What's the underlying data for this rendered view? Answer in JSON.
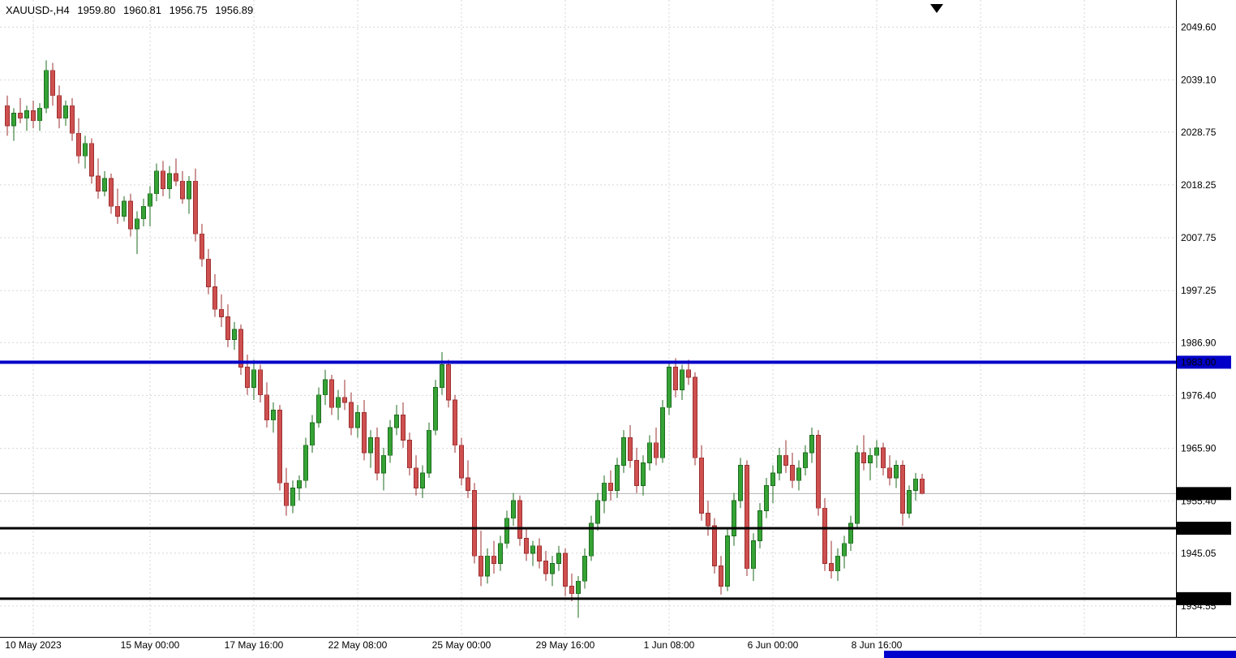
{
  "header": {
    "symbol_period": "XAUUSD-,H4",
    "open": "1959.80",
    "high": "1960.81",
    "low": "1956.75",
    "close": "1956.89"
  },
  "y_axis": {
    "ticks": [
      "2049.60",
      "2039.10",
      "2028.75",
      "2018.25",
      "2007.75",
      "1997.25",
      "1986.90",
      "1976.40",
      "1965.90",
      "1955.40",
      "1945.05",
      "1934.55"
    ],
    "tick_prices": [
      2049.6,
      2039.1,
      2028.75,
      2018.25,
      2007.75,
      1997.25,
      1986.9,
      1976.4,
      1965.9,
      1955.4,
      1945.05,
      1934.55
    ]
  },
  "x_axis": {
    "labels": [
      "10 May 2023",
      "15 May 00:00",
      "17 May 16:00",
      "22 May 08:00",
      "25 May 00:00",
      "29 May 16:00",
      "1 Jun 08:00",
      "6 Jun 00:00",
      "8 Jun 16:00"
    ],
    "bar_indices": [
      4,
      22,
      38,
      54,
      70,
      86,
      102,
      118,
      134
    ],
    "extra_gridline_indices": [
      150,
      166
    ]
  },
  "levels": [
    {
      "label": "1983.00",
      "price": 1983.0,
      "line_color": "#0000c8",
      "badge_bg": "#0000c8",
      "thickness": 4
    },
    {
      "label": "1950.00",
      "price": 1950.0,
      "line_color": "#000000",
      "badge_bg": "#000000",
      "thickness": 3
    },
    {
      "label": "1936.00",
      "price": 1936.0,
      "line_color": "#000000",
      "badge_bg": "#000000",
      "thickness": 3
    }
  ],
  "last_price": {
    "label": "1956.89",
    "price": 1956.89,
    "badge_bg": "#000000",
    "line_color": "#b3b3b3"
  },
  "colors": {
    "background": "#ffffff",
    "grid": "#d6d6d6",
    "axis_text": "#000000",
    "bull_fill": "#35a335",
    "bull_stroke": "#1e6b1e",
    "bear_fill": "#cf5050",
    "bear_stroke": "#9c2f2f",
    "level_blue": "#0000c8",
    "scrollbar": "#0000cd",
    "shift_marker": "#000000"
  },
  "chart_data": {
    "type": "candlestick",
    "symbol": "XAUUSD-",
    "timeframe": "H4",
    "title": "XAUUSD-,H4",
    "ylim": [
      1928.4,
      2055.0
    ],
    "grid": true,
    "candles": [
      [
        2034.0,
        2036.0,
        2028.0,
        2030.0
      ],
      [
        2030.0,
        2033.5,
        2027.0,
        2032.5
      ],
      [
        2032.5,
        2035.5,
        2030.5,
        2031.5
      ],
      [
        2031.5,
        2034.0,
        2029.0,
        2033.0
      ],
      [
        2033.0,
        2035.0,
        2029.5,
        2031.0
      ],
      [
        2031.0,
        2034.5,
        2029.0,
        2033.5
      ],
      [
        2033.5,
        2043.0,
        2032.5,
        2041.0
      ],
      [
        2041.0,
        2042.5,
        2034.0,
        2036.0
      ],
      [
        2036.0,
        2038.0,
        2029.5,
        2031.5
      ],
      [
        2031.5,
        2035.0,
        2030.0,
        2034.0
      ],
      [
        2034.0,
        2035.5,
        2027.0,
        2028.5
      ],
      [
        2028.5,
        2031.5,
        2022.5,
        2024.0
      ],
      [
        2024.0,
        2028.0,
        2021.5,
        2026.5
      ],
      [
        2026.5,
        2027.5,
        2018.5,
        2020.0
      ],
      [
        2020.0,
        2023.5,
        2015.5,
        2017.0
      ],
      [
        2017.0,
        2021.0,
        2016.0,
        2019.5
      ],
      [
        2019.5,
        2020.5,
        2012.5,
        2014.0
      ],
      [
        2014.0,
        2017.5,
        2010.5,
        2012.0
      ],
      [
        2012.0,
        2016.0,
        2011.0,
        2015.0
      ],
      [
        2015.0,
        2016.5,
        2008.0,
        2009.5
      ],
      [
        2009.5,
        2013.0,
        2004.5,
        2011.5
      ],
      [
        2011.5,
        2015.5,
        2010.0,
        2014.0
      ],
      [
        2014.0,
        2018.0,
        2010.0,
        2016.5
      ],
      [
        2016.5,
        2022.5,
        2015.0,
        2021.0
      ],
      [
        2021.0,
        2023.0,
        2016.0,
        2017.5
      ],
      [
        2017.5,
        2022.0,
        2015.5,
        2020.5
      ],
      [
        2020.5,
        2023.5,
        2018.0,
        2019.0
      ],
      [
        2019.0,
        2021.0,
        2014.5,
        2015.5
      ],
      [
        2015.5,
        2020.0,
        2012.5,
        2019.0
      ],
      [
        2019.0,
        2021.5,
        2007.0,
        2008.5
      ],
      [
        2008.5,
        2010.5,
        2002.0,
        2003.5
      ],
      [
        2003.5,
        2005.5,
        1996.5,
        1998.0
      ],
      [
        1998.0,
        2000.5,
        1992.0,
        1993.5
      ],
      [
        1993.5,
        1996.5,
        1990.0,
        1992.0
      ],
      [
        1992.0,
        1994.5,
        1986.0,
        1987.5
      ],
      [
        1987.5,
        1991.0,
        1985.5,
        1989.5
      ],
      [
        1989.5,
        1990.5,
        1980.5,
        1982.0
      ],
      [
        1982.0,
        1984.5,
        1976.5,
        1978.0
      ],
      [
        1978.0,
        1983.5,
        1975.5,
        1981.5
      ],
      [
        1981.5,
        1982.5,
        1975.0,
        1976.5
      ],
      [
        1976.5,
        1979.0,
        1970.0,
        1971.5
      ],
      [
        1971.5,
        1975.0,
        1969.0,
        1973.5
      ],
      [
        1973.5,
        1974.5,
        1957.5,
        1959.0
      ],
      [
        1959.0,
        1962.0,
        1952.5,
        1954.5
      ],
      [
        1954.5,
        1959.5,
        1953.0,
        1958.0
      ],
      [
        1958.0,
        1960.5,
        1955.5,
        1959.5
      ],
      [
        1959.5,
        1968.0,
        1958.0,
        1966.5
      ],
      [
        1966.5,
        1972.5,
        1965.0,
        1971.0
      ],
      [
        1971.0,
        1978.0,
        1970.0,
        1976.5
      ],
      [
        1976.5,
        1981.5,
        1974.5,
        1979.5
      ],
      [
        1979.5,
        1980.5,
        1972.5,
        1974.0
      ],
      [
        1974.0,
        1977.5,
        1971.5,
        1976.0
      ],
      [
        1976.0,
        1979.5,
        1973.5,
        1975.0
      ],
      [
        1975.0,
        1977.0,
        1968.5,
        1970.0
      ],
      [
        1970.0,
        1974.5,
        1968.0,
        1973.0
      ],
      [
        1973.0,
        1975.5,
        1963.5,
        1965.0
      ],
      [
        1965.0,
        1969.5,
        1962.0,
        1968.0
      ],
      [
        1968.0,
        1970.0,
        1959.5,
        1961.0
      ],
      [
        1961.0,
        1966.0,
        1957.5,
        1964.5
      ],
      [
        1964.5,
        1971.5,
        1963.0,
        1970.0
      ],
      [
        1970.0,
        1974.5,
        1968.5,
        1972.5
      ],
      [
        1972.5,
        1975.0,
        1966.0,
        1967.5
      ],
      [
        1967.5,
        1969.0,
        1960.5,
        1962.0
      ],
      [
        1962.0,
        1964.5,
        1956.5,
        1958.0
      ],
      [
        1958.0,
        1962.5,
        1956.0,
        1961.0
      ],
      [
        1961.0,
        1971.0,
        1960.0,
        1969.5
      ],
      [
        1969.5,
        1979.5,
        1968.5,
        1978.0
      ],
      [
        1978.0,
        1985.0,
        1976.5,
        1982.5
      ],
      [
        1982.5,
        1983.5,
        1974.0,
        1975.5
      ],
      [
        1975.5,
        1976.5,
        1965.0,
        1966.5
      ],
      [
        1966.5,
        1968.0,
        1958.5,
        1960.0
      ],
      [
        1960.0,
        1963.5,
        1956.0,
        1957.5
      ],
      [
        1957.5,
        1959.0,
        1943.0,
        1944.5
      ],
      [
        1944.5,
        1949.5,
        1938.5,
        1940.5
      ],
      [
        1940.5,
        1946.0,
        1939.0,
        1944.5
      ],
      [
        1944.5,
        1947.5,
        1941.0,
        1943.0
      ],
      [
        1943.0,
        1948.5,
        1941.5,
        1947.0
      ],
      [
        1947.0,
        1953.5,
        1946.0,
        1952.0
      ],
      [
        1952.0,
        1957.0,
        1950.5,
        1955.5
      ],
      [
        1955.5,
        1956.5,
        1946.5,
        1948.0
      ],
      [
        1948.0,
        1950.0,
        1943.5,
        1945.0
      ],
      [
        1945.0,
        1947.5,
        1942.5,
        1946.5
      ],
      [
        1946.5,
        1948.0,
        1942.0,
        1943.5
      ],
      [
        1943.5,
        1945.5,
        1939.5,
        1941.0
      ],
      [
        1941.0,
        1944.5,
        1938.5,
        1943.0
      ],
      [
        1943.0,
        1946.5,
        1941.5,
        1945.0
      ],
      [
        1945.0,
        1946.0,
        1936.5,
        1938.5
      ],
      [
        1938.5,
        1941.0,
        1935.5,
        1937.0
      ],
      [
        1937.0,
        1940.5,
        1932.2,
        1939.5
      ],
      [
        1939.5,
        1946.0,
        1938.0,
        1944.5
      ],
      [
        1944.5,
        1952.5,
        1943.5,
        1951.0
      ],
      [
        1951.0,
        1957.0,
        1949.5,
        1955.5
      ],
      [
        1955.5,
        1960.5,
        1953.0,
        1959.0
      ],
      [
        1959.0,
        1961.5,
        1955.5,
        1957.5
      ],
      [
        1957.5,
        1964.0,
        1956.0,
        1962.5
      ],
      [
        1962.5,
        1969.5,
        1961.0,
        1968.0
      ],
      [
        1968.0,
        1970.5,
        1962.0,
        1963.5
      ],
      [
        1963.5,
        1966.0,
        1957.0,
        1958.5
      ],
      [
        1958.5,
        1964.5,
        1956.5,
        1963.0
      ],
      [
        1963.0,
        1968.5,
        1961.5,
        1967.0
      ],
      [
        1967.0,
        1970.0,
        1962.5,
        1964.0
      ],
      [
        1964.0,
        1975.5,
        1963.0,
        1974.0
      ],
      [
        1974.0,
        1983.2,
        1972.5,
        1982.0
      ],
      [
        1982.0,
        1983.8,
        1976.0,
        1977.5
      ],
      [
        1977.5,
        1982.5,
        1975.5,
        1981.5
      ],
      [
        1981.5,
        1983.5,
        1978.5,
        1980.0
      ],
      [
        1980.0,
        1981.0,
        1962.5,
        1964.0
      ],
      [
        1964.0,
        1966.5,
        1951.5,
        1953.0
      ],
      [
        1953.0,
        1955.5,
        1948.5,
        1950.5
      ],
      [
        1950.5,
        1952.0,
        1941.0,
        1942.5
      ],
      [
        1942.5,
        1944.5,
        1936.8,
        1938.5
      ],
      [
        1938.5,
        1950.0,
        1937.5,
        1948.5
      ],
      [
        1948.5,
        1957.0,
        1946.5,
        1955.5
      ],
      [
        1955.5,
        1964.0,
        1954.0,
        1962.5
      ],
      [
        1962.5,
        1963.5,
        1940.5,
        1942.0
      ],
      [
        1942.0,
        1949.0,
        1939.5,
        1947.5
      ],
      [
        1947.5,
        1955.0,
        1946.0,
        1953.5
      ],
      [
        1953.5,
        1960.0,
        1952.0,
        1958.5
      ],
      [
        1958.5,
        1962.5,
        1955.0,
        1961.0
      ],
      [
        1961.0,
        1966.0,
        1959.5,
        1964.5
      ],
      [
        1964.5,
        1967.5,
        1961.0,
        1962.5
      ],
      [
        1962.5,
        1965.0,
        1958.0,
        1959.5
      ],
      [
        1959.5,
        1963.5,
        1957.5,
        1962.0
      ],
      [
        1962.0,
        1966.5,
        1960.5,
        1965.0
      ],
      [
        1965.0,
        1970.0,
        1963.0,
        1968.5
      ],
      [
        1968.5,
        1969.5,
        1952.5,
        1954.0
      ],
      [
        1954.0,
        1956.0,
        1941.5,
        1943.0
      ],
      [
        1943.0,
        1947.5,
        1940.0,
        1941.5
      ],
      [
        1941.5,
        1946.0,
        1939.5,
        1944.5
      ],
      [
        1944.5,
        1948.5,
        1942.0,
        1947.0
      ],
      [
        1947.0,
        1952.5,
        1945.5,
        1951.0
      ],
      [
        1951.0,
        1966.5,
        1950.0,
        1965.0
      ],
      [
        1965.0,
        1968.5,
        1961.5,
        1963.0
      ],
      [
        1963.0,
        1966.0,
        1959.5,
        1964.5
      ],
      [
        1964.5,
        1967.5,
        1962.0,
        1966.0
      ],
      [
        1966.0,
        1967.0,
        1960.5,
        1962.0
      ],
      [
        1962.0,
        1964.5,
        1958.5,
        1960.0
      ],
      [
        1960.0,
        1963.5,
        1958.0,
        1962.5
      ],
      [
        1962.5,
        1963.5,
        1950.5,
        1953.0
      ],
      [
        1953.0,
        1958.5,
        1952.0,
        1957.5
      ],
      [
        1957.5,
        1961.0,
        1955.5,
        1959.8
      ],
      [
        1959.8,
        1960.81,
        1956.75,
        1956.89
      ]
    ]
  }
}
